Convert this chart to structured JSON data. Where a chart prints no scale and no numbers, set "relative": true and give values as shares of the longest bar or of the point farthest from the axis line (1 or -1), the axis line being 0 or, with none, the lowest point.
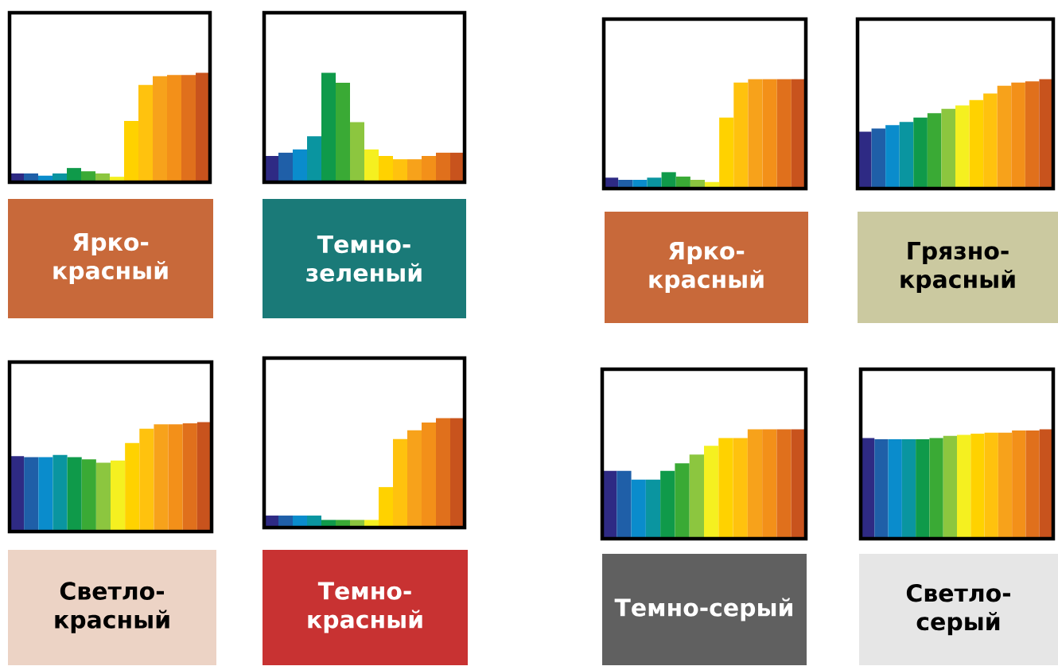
{
  "chart_data": [
    {
      "type": "bar",
      "relative": true,
      "title": "Ярко-красный",
      "categories": [
        null,
        null,
        null,
        null,
        null,
        null,
        null,
        null,
        null,
        null,
        null,
        null,
        null,
        null
      ],
      "values": [
        0.08,
        0.08,
        0.06,
        0.08,
        0.13,
        0.1,
        0.08,
        0.05,
        0.56,
        0.89,
        0.97,
        0.98,
        0.98,
        1
      ],
      "colors": [
        "#2e2a84",
        "#1f5fa8",
        "#0a8ccc",
        "#0a95a0",
        "#0f9a4a",
        "#3aaa35",
        "#8cc63f",
        "#f5f020",
        "#ffd200",
        "#ffc20e",
        "#f7a21b",
        "#f39019",
        "#e0701c",
        "#c8531d"
      ]
    },
    {
      "type": "bar",
      "relative": true,
      "title": "Темно-зеленый",
      "categories": [
        null,
        null,
        null,
        null,
        null,
        null,
        null,
        null,
        null,
        null,
        null,
        null,
        null,
        null
      ],
      "values": [
        0.24,
        0.27,
        0.3,
        0.42,
        1,
        0.91,
        0.55,
        0.3,
        0.24,
        0.21,
        0.21,
        0.24,
        0.27,
        0.27
      ],
      "colors": [
        "#2e2a84",
        "#1f5fa8",
        "#0a8ccc",
        "#0a95a0",
        "#0f9a4a",
        "#3aaa35",
        "#8cc63f",
        "#f5f020",
        "#ffd200",
        "#ffc20e",
        "#f7a21b",
        "#f39019",
        "#e0701c",
        "#c8531d"
      ]
    },
    {
      "type": "bar",
      "relative": true,
      "title": "Ярко-красный",
      "categories": [
        null,
        null,
        null,
        null,
        null,
        null,
        null,
        null,
        null,
        null,
        null,
        null,
        null,
        null
      ],
      "values": [
        0.1,
        0.08,
        0.08,
        0.1,
        0.15,
        0.11,
        0.08,
        0.06,
        0.65,
        0.97,
        1,
        1,
        1,
        1
      ],
      "colors": [
        "#2e2a84",
        "#1f5fa8",
        "#0a8ccc",
        "#0a95a0",
        "#0f9a4a",
        "#3aaa35",
        "#8cc63f",
        "#f5f020",
        "#ffd200",
        "#ffc20e",
        "#f7a21b",
        "#f39019",
        "#e0701c",
        "#c8531d"
      ]
    },
    {
      "type": "bar",
      "relative": true,
      "title": "Грязно-красный",
      "categories": [
        null,
        null,
        null,
        null,
        null,
        null,
        null,
        null,
        null,
        null,
        null,
        null,
        null,
        null
      ],
      "values": [
        0.52,
        0.55,
        0.58,
        0.61,
        0.65,
        0.69,
        0.73,
        0.76,
        0.81,
        0.87,
        0.94,
        0.97,
        0.98,
        1
      ],
      "colors": [
        "#2e2a84",
        "#1f5fa8",
        "#0a8ccc",
        "#0a95a0",
        "#0f9a4a",
        "#3aaa35",
        "#8cc63f",
        "#f5f020",
        "#ffd200",
        "#ffc20e",
        "#f7a21b",
        "#f39019",
        "#e0701c",
        "#c8531d"
      ]
    },
    {
      "type": "bar",
      "relative": true,
      "title": "Светло-красный",
      "categories": [
        null,
        null,
        null,
        null,
        null,
        null,
        null,
        null,
        null,
        null,
        null,
        null,
        null,
        null
      ],
      "values": [
        0.69,
        0.68,
        0.68,
        0.7,
        0.68,
        0.66,
        0.63,
        0.65,
        0.81,
        0.94,
        0.98,
        0.98,
        0.99,
        1
      ],
      "colors": [
        "#2e2a84",
        "#1f5fa8",
        "#0a8ccc",
        "#0a95a0",
        "#0f9a4a",
        "#3aaa35",
        "#8cc63f",
        "#f5f020",
        "#ffd200",
        "#ffc20e",
        "#f7a21b",
        "#f39019",
        "#e0701c",
        "#c8531d"
      ]
    },
    {
      "type": "bar",
      "relative": true,
      "title": "Темно-красный",
      "categories": [
        null,
        null,
        null,
        null,
        null,
        null,
        null,
        null,
        null,
        null,
        null,
        null,
        null,
        null
      ],
      "values": [
        0.11,
        0.11,
        0.11,
        0.11,
        0.07,
        0.07,
        0.07,
        0.07,
        0.37,
        0.81,
        0.89,
        0.96,
        1,
        1
      ],
      "colors": [
        "#2e2a84",
        "#1f5fa8",
        "#0a8ccc",
        "#0a95a0",
        "#0f9a4a",
        "#3aaa35",
        "#8cc63f",
        "#f5f020",
        "#ffd200",
        "#ffc20e",
        "#f7a21b",
        "#f39019",
        "#e0701c",
        "#c8531d"
      ]
    },
    {
      "type": "bar",
      "relative": true,
      "title": "Темно-серый",
      "categories": [
        null,
        null,
        null,
        null,
        null,
        null,
        null,
        null,
        null,
        null,
        null,
        null,
        null,
        null
      ],
      "values": [
        0.62,
        0.62,
        0.54,
        0.54,
        0.62,
        0.69,
        0.77,
        0.85,
        0.92,
        0.92,
        1,
        1,
        1,
        1
      ],
      "colors": [
        "#2e2a84",
        "#1f5fa8",
        "#0a8ccc",
        "#0a95a0",
        "#0f9a4a",
        "#3aaa35",
        "#8cc63f",
        "#f5f020",
        "#ffd200",
        "#ffc20e",
        "#f7a21b",
        "#f39019",
        "#e0701c",
        "#c8531d"
      ]
    },
    {
      "type": "bar",
      "relative": true,
      "title": "Светло-серый",
      "categories": [
        null,
        null,
        null,
        null,
        null,
        null,
        null,
        null,
        null,
        null,
        null,
        null,
        null,
        null
      ],
      "values": [
        0.92,
        0.91,
        0.91,
        0.91,
        0.91,
        0.92,
        0.94,
        0.95,
        0.96,
        0.97,
        0.97,
        0.99,
        0.99,
        1
      ],
      "colors": [
        "#2e2a84",
        "#1f5fa8",
        "#0a8ccc",
        "#0a95a0",
        "#0f9a4a",
        "#3aaa35",
        "#8cc63f",
        "#f5f020",
        "#ffd200",
        "#ffc20e",
        "#f7a21b",
        "#f39019",
        "#e0701c",
        "#c8531d"
      ]
    }
  ]
}
